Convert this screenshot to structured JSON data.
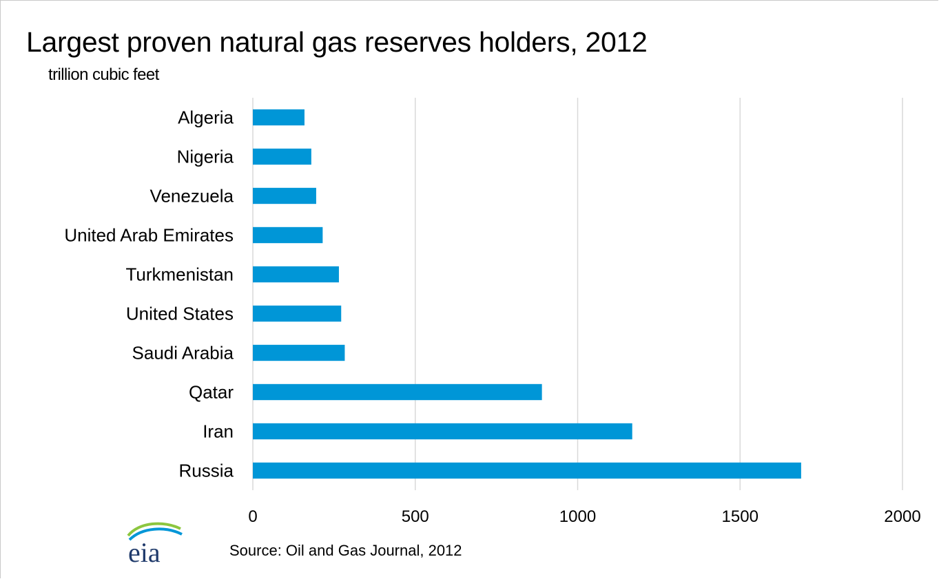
{
  "title": "Largest proven natural gas reserves holders, 2012",
  "subtitle": "trillion cubic feet",
  "source": "Source: Oil and Gas Journal, 2012",
  "logo": {
    "text": "eia",
    "icon": "eia-logo-swoosh"
  },
  "colors": {
    "bar": "#0096d7",
    "grid": "#d9d9d9",
    "logo_text": "#1f3a6b",
    "logo_swoosh_green": "#8cc63f",
    "logo_swoosh_blue": "#0096d7"
  },
  "chart_data": {
    "type": "bar",
    "orientation": "horizontal",
    "title": "Largest proven natural gas reserves holders, 2012",
    "subtitle": "trillion cubic feet",
    "categories": [
      "Algeria",
      "Nigeria",
      "Venezuela",
      "United Arab Emirates",
      "Turkmenistan",
      "United States",
      "Saudi Arabia",
      "Qatar",
      "Iran",
      "Russia"
    ],
    "values": [
      159,
      180,
      195,
      215,
      265,
      272,
      283,
      890,
      1168,
      1688
    ],
    "xlim": [
      0,
      2000
    ],
    "xticks": [
      0,
      500,
      1000,
      1500,
      2000
    ],
    "xtick_labels": [
      "0",
      "500",
      "1000",
      "1500",
      "2000"
    ],
    "grid": "vertical",
    "legend": "none"
  }
}
